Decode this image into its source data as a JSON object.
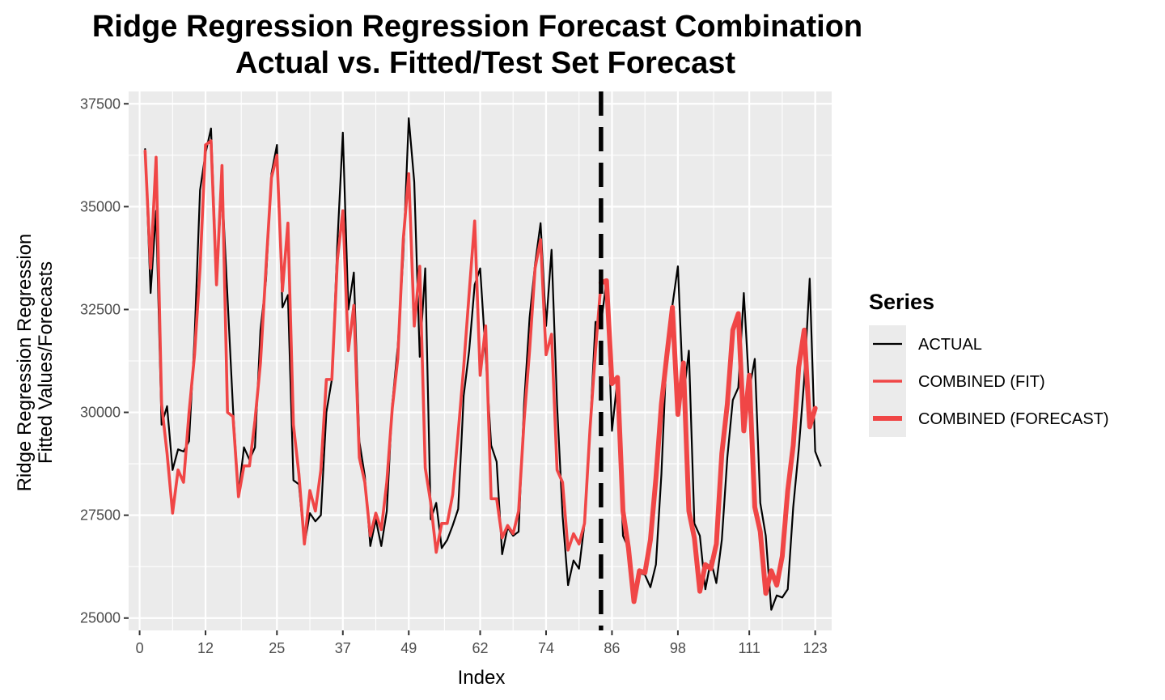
{
  "chart_data": {
    "type": "line",
    "title": "Ridge Regression Regression Forecast Combination",
    "subtitle": "Actual vs. Fitted/Test Set Forecast",
    "xlabel": "Index",
    "ylabel_line1": "Ridge Regression Regression",
    "ylabel_line2": "Fitted Values/Forecasts",
    "xlim": [
      -2,
      126
    ],
    "ylim": [
      24700,
      37800
    ],
    "x_ticks": [
      0,
      12,
      25,
      37,
      49,
      62,
      74,
      86,
      98,
      111,
      123
    ],
    "y_ticks": [
      25000,
      27500,
      30000,
      32500,
      35000,
      37500
    ],
    "grid": true,
    "legend_position": "right",
    "legend_title": "Series",
    "train_test_split_x": 84,
    "colors": {
      "actual": "#000000",
      "fit": "#f04646",
      "forecast": "#f04646",
      "split_line": "#000000",
      "panel": "#ebebeb",
      "grid": "#ffffff"
    },
    "series": [
      {
        "name": "ACTUAL",
        "x_start": 1,
        "values": [
          36400,
          32900,
          34900,
          29700,
          30150,
          28600,
          29100,
          29050,
          29300,
          31800,
          35400,
          36300,
          36900,
          33300,
          35500,
          32800,
          30100,
          28000,
          29150,
          28850,
          29150,
          32000,
          33200,
          35800,
          36500,
          32550,
          32850,
          28350,
          28250,
          26800,
          27550,
          27350,
          27500,
          30000,
          30800,
          34100,
          36800,
          32500,
          33400,
          29300,
          28450,
          26750,
          27400,
          26750,
          27600,
          30200,
          31600,
          33800,
          37150,
          35600,
          31350,
          33500,
          27400,
          27800,
          26700,
          26900,
          27250,
          27650,
          30400,
          31500,
          33100,
          33500,
          31400,
          29200,
          28800,
          26550,
          27200,
          27000,
          27100,
          30200,
          32300,
          33600,
          34600,
          32100,
          33950,
          30200,
          27500,
          25800,
          26400,
          26200,
          27300,
          29600,
          32200,
          32150,
          33200,
          29550,
          30800,
          27000,
          26700,
          25400,
          26100,
          26050,
          25750,
          26300,
          28500,
          31600,
          32600,
          33550,
          30350,
          31500,
          27300,
          27000,
          25700,
          26400,
          25850,
          26900,
          28900,
          30300,
          30600,
          32900,
          30550,
          31300,
          27800,
          27000,
          25200,
          25550,
          25500,
          25700,
          27700,
          29100,
          30800,
          33250,
          29050,
          28700
        ]
      },
      {
        "name": "COMBINED (FIT)",
        "x_start": 1,
        "values": [
          36350,
          33500,
          36200,
          30200,
          29000,
          27550,
          28600,
          28300,
          30000,
          31400,
          33500,
          36500,
          36600,
          33100,
          36000,
          30000,
          29900,
          27950,
          28700,
          28700,
          29800,
          31200,
          33500,
          35700,
          36250,
          32950,
          34600,
          29700,
          28500,
          26800,
          28100,
          27600,
          28600,
          30800,
          30800,
          33700,
          34900,
          31500,
          32600,
          28900,
          28300,
          27000,
          27550,
          27150,
          28300,
          30100,
          31300,
          34200,
          35800,
          32100,
          33550,
          28650,
          27800,
          26600,
          27300,
          27300,
          28000,
          29500,
          31100,
          32900,
          34650,
          30900,
          32100,
          27900,
          27900,
          26950,
          27250,
          27050,
          27600,
          29800,
          31500,
          33500,
          34200,
          31400,
          31900,
          28600,
          28300,
          26650,
          27050,
          26800,
          27300,
          29600,
          31500,
          33150
        ]
      },
      {
        "name": "COMBINED (FORECAST)",
        "x_start": 84,
        "values": [
          33150,
          33200,
          30700,
          30850,
          27600,
          26700,
          25400,
          26150,
          26100,
          26900,
          28400,
          30200,
          31400,
          32550,
          29950,
          31200,
          27600,
          26950,
          25650,
          26300,
          26200,
          26800,
          29000,
          30200,
          32000,
          32400,
          29550,
          30900,
          27700,
          27100,
          25600,
          26150,
          25800,
          26500,
          28100,
          29200,
          31100,
          32000,
          29650,
          30100
        ]
      }
    ]
  }
}
